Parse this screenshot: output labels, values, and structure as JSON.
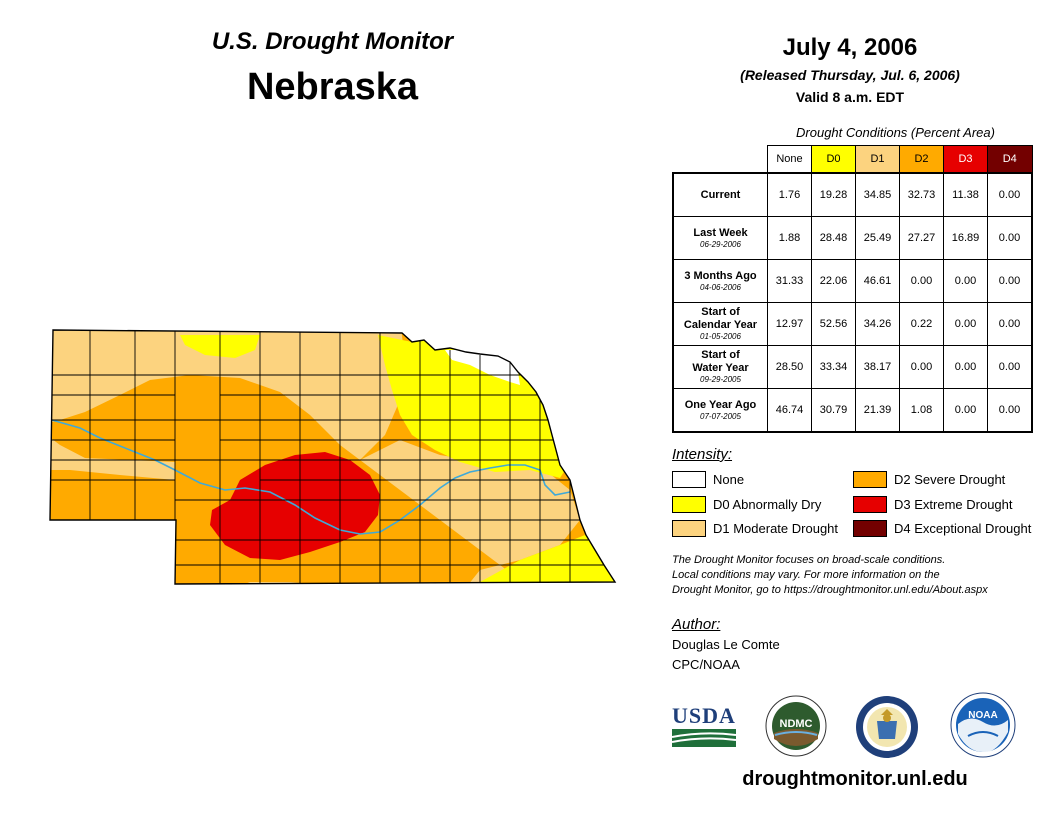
{
  "header": {
    "monitor_title": "U.S. Drought Monitor",
    "state": "Nebraska",
    "date": "July 4, 2006",
    "released": "(Released Thursday, Jul. 6, 2006)",
    "valid": "Valid 8 a.m. EDT"
  },
  "table": {
    "caption": "Drought Conditions (Percent Area)",
    "columns": [
      {
        "label": "None",
        "color": "#ffffff",
        "text_color": "#000000"
      },
      {
        "label": "D0",
        "color": "#ffff00",
        "text_color": "#000000"
      },
      {
        "label": "D1",
        "color": "#fcd37f",
        "text_color": "#000000"
      },
      {
        "label": "D2",
        "color": "#ffaa00",
        "text_color": "#000000"
      },
      {
        "label": "D3",
        "color": "#e60000",
        "text_color": "#ffffff"
      },
      {
        "label": "D4",
        "color": "#730000",
        "text_color": "#ffffff"
      }
    ],
    "rows": [
      {
        "label": [
          "Current"
        ],
        "date": "",
        "values": [
          "1.76",
          "19.28",
          "34.85",
          "32.73",
          "11.38",
          "0.00"
        ]
      },
      {
        "label": [
          "Last Week"
        ],
        "date": "06-29-2006",
        "values": [
          "1.88",
          "28.48",
          "25.49",
          "27.27",
          "16.89",
          "0.00"
        ]
      },
      {
        "label": [
          "3 Months Ago"
        ],
        "date": "04-06-2006",
        "values": [
          "31.33",
          "22.06",
          "46.61",
          "0.00",
          "0.00",
          "0.00"
        ]
      },
      {
        "label": [
          "Start of",
          "Calendar Year"
        ],
        "date": "01-05-2006",
        "values": [
          "12.97",
          "52.56",
          "34.26",
          "0.22",
          "0.00",
          "0.00"
        ]
      },
      {
        "label": [
          "Start of",
          "Water Year"
        ],
        "date": "09-29-2005",
        "values": [
          "28.50",
          "33.34",
          "38.17",
          "0.00",
          "0.00",
          "0.00"
        ]
      },
      {
        "label": [
          "One Year Ago"
        ],
        "date": "07-07-2005",
        "values": [
          "46.74",
          "30.79",
          "21.39",
          "1.08",
          "0.00",
          "0.00"
        ]
      }
    ]
  },
  "legend": {
    "title": "Intensity:",
    "items": [
      {
        "label": "None",
        "color": "#ffffff"
      },
      {
        "label": "D0 Abnormally Dry",
        "color": "#ffff00"
      },
      {
        "label": "D1 Moderate Drought",
        "color": "#fcd37f"
      },
      {
        "label": "D2 Severe Drought",
        "color": "#ffaa00"
      },
      {
        "label": "D3 Extreme Drought",
        "color": "#e60000"
      },
      {
        "label": "D4 Exceptional Drought",
        "color": "#730000"
      }
    ]
  },
  "note": [
    "The Drought Monitor focuses on broad-scale conditions.",
    "Local conditions may vary. For more information on the",
    "Drought Monitor, go to https://droughtmonitor.unl.edu/About.aspx"
  ],
  "author": {
    "title": "Author:",
    "name": "Douglas Le Comte",
    "org": "CPC/NOAA"
  },
  "logos": {
    "usda": "USDA",
    "ndmc": "NDMC",
    "noaa": "NOAA"
  },
  "url": "droughtmonitor.unl.edu",
  "map": {
    "region": "Nebraska",
    "colors": {
      "none": "#ffffff",
      "d0": "#ffff00",
      "d1": "#fcd37f",
      "d2": "#ffaa00",
      "d3": "#e60000",
      "river": "#3fa9d8",
      "county_lines": "#000000"
    }
  }
}
